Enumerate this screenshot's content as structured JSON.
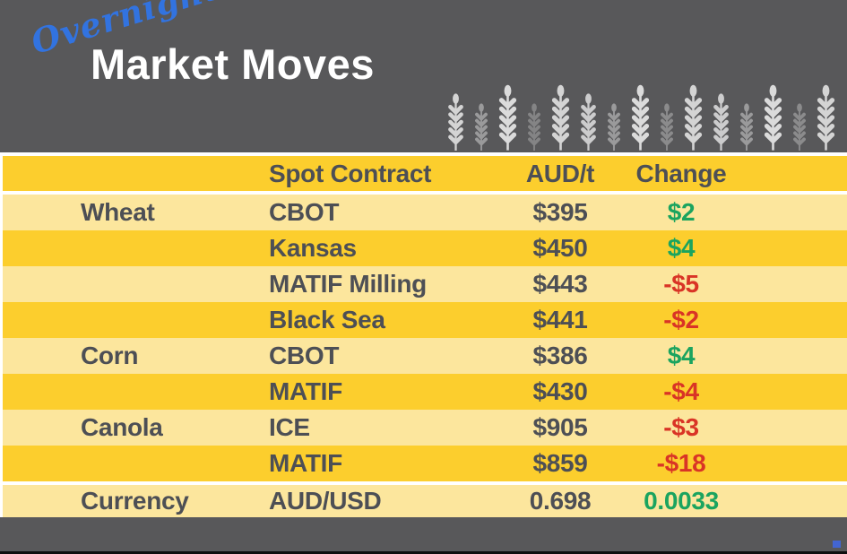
{
  "header": {
    "overlay_word": "Overnight",
    "title": "Market Moves",
    "wheat_icons": [
      {
        "name": "wheat-ear-icon",
        "size": "medium",
        "opacity": 0.85
      },
      {
        "name": "wheat-ear-icon",
        "size": "short",
        "opacity": 0.45
      },
      {
        "name": "wheat-ear-icon",
        "size": "tall",
        "opacity": 0.9
      },
      {
        "name": "wheat-ear-icon",
        "size": "short",
        "opacity": 0.3
      },
      {
        "name": "wheat-ear-icon",
        "size": "tall",
        "opacity": 0.85
      },
      {
        "name": "wheat-ear-icon",
        "size": "medium",
        "opacity": 0.8
      },
      {
        "name": "wheat-ear-icon",
        "size": "short",
        "opacity": 0.45
      },
      {
        "name": "wheat-ear-icon",
        "size": "tall",
        "opacity": 0.9
      },
      {
        "name": "wheat-ear-icon",
        "size": "short",
        "opacity": 0.35
      },
      {
        "name": "wheat-ear-icon",
        "size": "tall",
        "opacity": 0.85
      },
      {
        "name": "wheat-ear-icon",
        "size": "medium",
        "opacity": 0.8
      },
      {
        "name": "wheat-ear-icon",
        "size": "short",
        "opacity": 0.45
      },
      {
        "name": "wheat-ear-icon",
        "size": "tall",
        "opacity": 0.9
      },
      {
        "name": "wheat-ear-icon",
        "size": "short",
        "opacity": 0.35
      },
      {
        "name": "wheat-ear-icon",
        "size": "tall",
        "opacity": 0.85
      }
    ]
  },
  "table": {
    "columns": [
      "",
      "Spot Contract",
      "AUD/t",
      "Change"
    ],
    "rows": [
      {
        "category": "Wheat",
        "contract": "CBOT",
        "price": "$395",
        "change": "$2",
        "direction": "up"
      },
      {
        "category": "",
        "contract": "Kansas",
        "price": "$450",
        "change": "$4",
        "direction": "up"
      },
      {
        "category": "",
        "contract": "MATIF Milling",
        "price": "$443",
        "change": "-$5",
        "direction": "down"
      },
      {
        "category": "",
        "contract": "Black Sea",
        "price": "$441",
        "change": "-$2",
        "direction": "down"
      },
      {
        "category": "Corn",
        "contract": "CBOT",
        "price": "$386",
        "change": "$4",
        "direction": "up"
      },
      {
        "category": "",
        "contract": "MATIF",
        "price": "$430",
        "change": "-$4",
        "direction": "down"
      },
      {
        "category": "Canola",
        "contract": "ICE",
        "price": "$905",
        "change": "-$3",
        "direction": "down"
      },
      {
        "category": "",
        "contract": "MATIF",
        "price": "$859",
        "change": "-$18",
        "direction": "down"
      },
      {
        "category": "Currency",
        "contract": "AUD/USD",
        "price": "0.698",
        "change": "0.0033",
        "direction": "up",
        "separator_above": true
      }
    ]
  },
  "colors": {
    "gray": "#58585A",
    "gold": "#FCCE2D",
    "light": "#FCE69D",
    "text": "#4D4F55",
    "green": "#1BA45F",
    "red": "#D93426",
    "blue": "#3273E0",
    "mark": "#4365D2"
  },
  "chart_data": {
    "type": "table",
    "title": "Overnight Market Moves",
    "columns": [
      "",
      "Spot Contract",
      "AUD/t",
      "Change"
    ],
    "rows": [
      [
        "Wheat",
        "CBOT",
        "$395",
        "$2"
      ],
      [
        "",
        "Kansas",
        "$450",
        "$4"
      ],
      [
        "",
        "MATIF Milling",
        "$443",
        "-$5"
      ],
      [
        "",
        "Black Sea",
        "$441",
        "-$2"
      ],
      [
        "Corn",
        "CBOT",
        "$386",
        "$4"
      ],
      [
        "",
        "MATIF",
        "$430",
        "-$4"
      ],
      [
        "Canola",
        "ICE",
        "$905",
        "-$3"
      ],
      [
        "",
        "MATIF",
        "$859",
        "-$18"
      ],
      [
        "Currency",
        "AUD/USD",
        "0.698",
        "0.0033"
      ]
    ],
    "change_direction": [
      "up",
      "up",
      "down",
      "down",
      "up",
      "down",
      "down",
      "down",
      "up"
    ],
    "layout": {
      "positive_color": "#1BA45F",
      "negative_color": "#D93426",
      "row_shading": "alternating gold/light-yellow"
    }
  }
}
